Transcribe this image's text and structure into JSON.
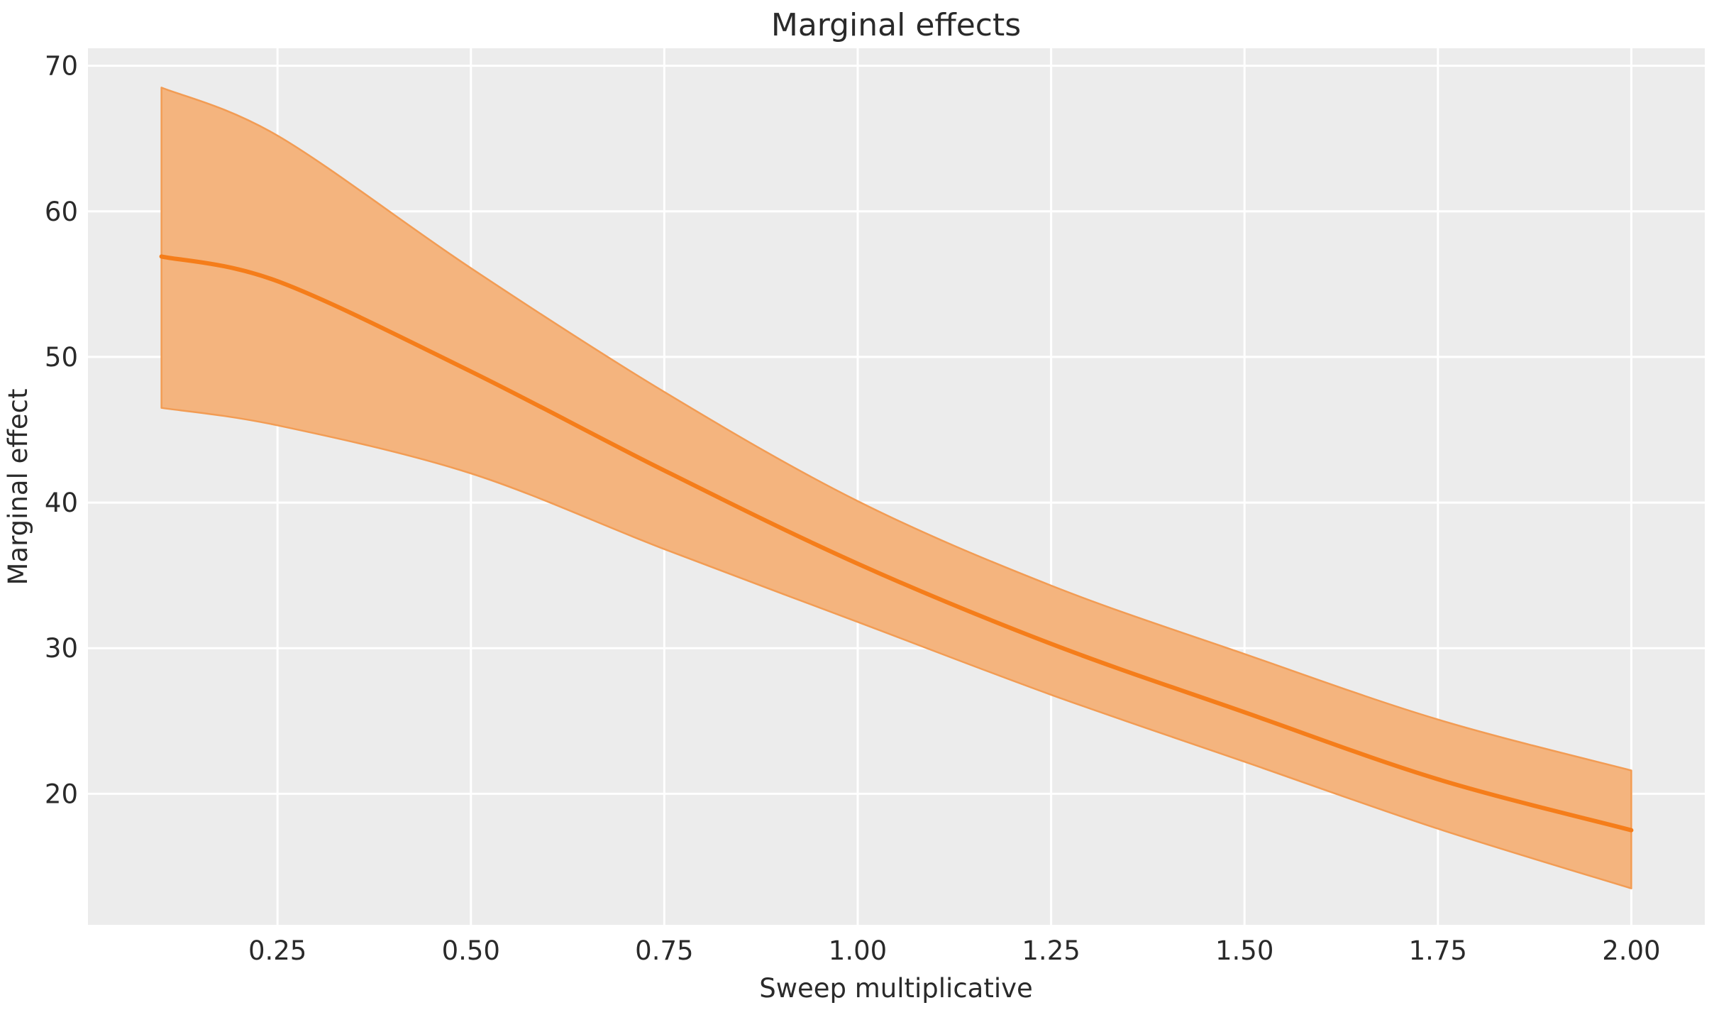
{
  "title": "Marginal effects",
  "chart_data": {
    "type": "line",
    "title": "Marginal effects",
    "xlabel": "Sweep multiplicative",
    "ylabel": "Marginal effect",
    "x": [
      0.1,
      0.25,
      0.5,
      0.75,
      1.0,
      1.25,
      1.5,
      1.75,
      2.0
    ],
    "series": [
      {
        "name": "marginal-effect-mean",
        "role": "line",
        "values": [
          56.9,
          55.2,
          49.0,
          42.2,
          35.8,
          30.3,
          25.6,
          21.0,
          17.5
        ]
      },
      {
        "name": "ci-upper",
        "role": "band-upper",
        "values": [
          68.5,
          65.2,
          56.1,
          47.6,
          40.1,
          34.3,
          29.6,
          25.1,
          21.6
        ]
      },
      {
        "name": "ci-lower",
        "role": "band-lower",
        "values": [
          46.5,
          45.3,
          42.0,
          36.8,
          31.8,
          26.8,
          22.2,
          17.6,
          13.5
        ]
      }
    ],
    "x_ticks": [
      0.25,
      0.5,
      0.75,
      1.0,
      1.25,
      1.5,
      1.75,
      2.0
    ],
    "x_tick_labels": [
      "0.25",
      "0.50",
      "0.75",
      "1.00",
      "1.25",
      "1.50",
      "1.75",
      "2.00"
    ],
    "y_ticks": [
      20,
      30,
      40,
      50,
      60,
      70
    ],
    "y_tick_labels": [
      "20",
      "30",
      "40",
      "50",
      "60",
      "70"
    ],
    "xlim": [
      0.005,
      2.095
    ],
    "ylim": [
      11.0,
      71.2
    ],
    "grid": true,
    "legend": "none",
    "colors": {
      "line": "#f57d1a",
      "band_fill": "#f4b47e",
      "band_edge": "#f29c54",
      "plot_bg": "#ececec",
      "grid": "#ffffff",
      "figure_bg": "#ffffff",
      "text": "#2a2a2a"
    }
  }
}
